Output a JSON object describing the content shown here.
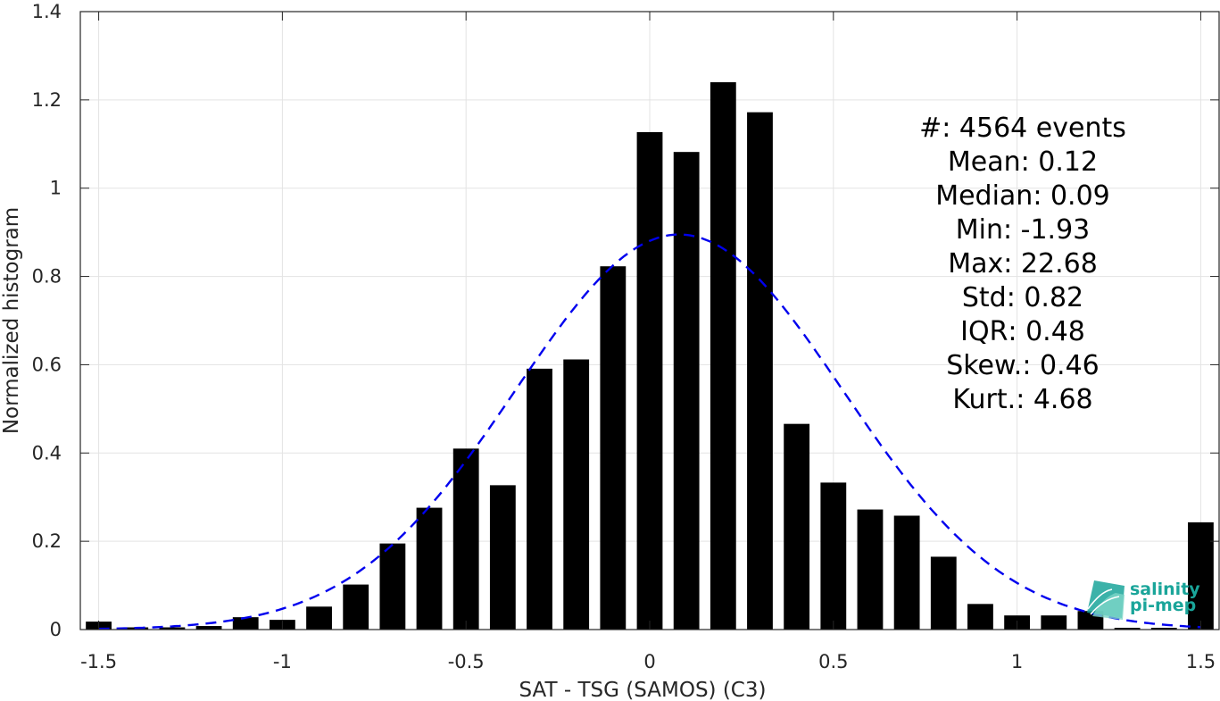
{
  "chart_data": {
    "type": "bar",
    "title": "",
    "xlabel": "SAT - TSG (SAMOS) (C3)",
    "ylabel": "Normalized histogram",
    "xlim": [
      -1.55,
      1.55
    ],
    "ylim": [
      0,
      1.4
    ],
    "xticks": [
      -1.5,
      -1,
      -0.5,
      0,
      0.5,
      1,
      1.5
    ],
    "xtick_labels": [
      "-1.5",
      "-1",
      "-0.5",
      "0",
      "0.5",
      "1",
      "1.5"
    ],
    "yticks": [
      0,
      0.2,
      0.4,
      0.6,
      0.8,
      1,
      1.2,
      1.4
    ],
    "ytick_labels": [
      "0",
      "0.2",
      "0.4",
      "0.6",
      "0.8",
      "1",
      "1.2",
      "1.4"
    ],
    "grid": true,
    "bar_width": 0.07,
    "bar_color": "#000000",
    "x": [
      -1.5,
      -1.4,
      -1.3,
      -1.2,
      -1.1,
      -1.0,
      -0.9,
      -0.8,
      -0.7,
      -0.6,
      -0.5,
      -0.4,
      -0.3,
      -0.2,
      -0.1,
      0.0,
      0.1,
      0.2,
      0.3,
      0.4,
      0.5,
      0.6,
      0.7,
      0.8,
      0.9,
      1.0,
      1.1,
      1.2,
      1.3,
      1.4,
      1.5
    ],
    "values": [
      0.018,
      0.005,
      0.005,
      0.008,
      0.028,
      0.022,
      0.052,
      0.102,
      0.195,
      0.276,
      0.41,
      0.327,
      0.591,
      0.612,
      0.823,
      1.127,
      1.082,
      1.24,
      1.172,
      0.466,
      0.333,
      0.272,
      0.258,
      0.165,
      0.058,
      0.032,
      0.032,
      0.042,
      0.004,
      0.004,
      0.243
    ],
    "fit": {
      "type": "normal",
      "style": "dashed",
      "color": "#0000ee",
      "mean": 0.08,
      "peak": 0.895,
      "sigma": 0.445
    },
    "stats": [
      {
        "label": "#  ",
        "value": ": 4564 events"
      },
      {
        "label": "Mean ",
        "value": ": 0.12"
      },
      {
        "label": "Median ",
        "value": ": 0.09"
      },
      {
        "label": "Min ",
        "value": ": -1.93"
      },
      {
        "label": "Max ",
        "value": ": 22.68"
      },
      {
        "label": "Std ",
        "value": ": 0.82"
      },
      {
        "label": "IQR ",
        "value": ": 0.48"
      },
      {
        "label": "Skew. ",
        "value": ": 0.46"
      },
      {
        "label": "Kurt. ",
        "value": ": 4.68"
      }
    ]
  },
  "logo": {
    "line1": "salinity",
    "line2": "pi-mep",
    "color": "#1aa59a"
  }
}
